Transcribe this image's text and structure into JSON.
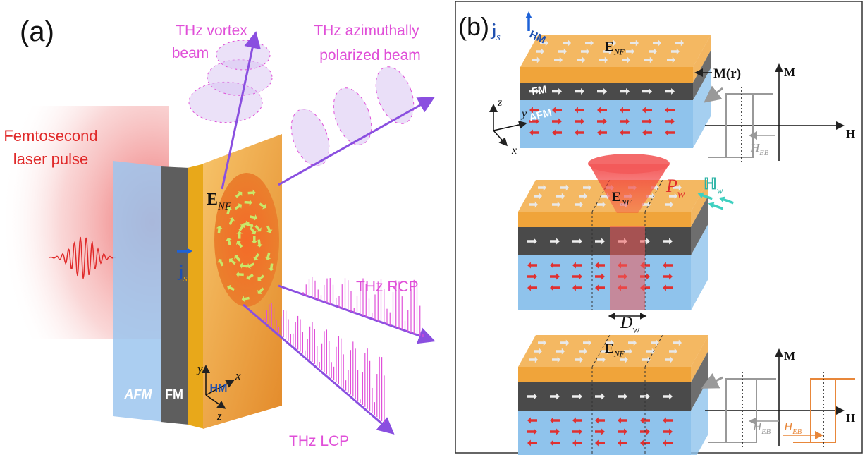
{
  "panel_a": {
    "label": "(a)",
    "vortex_beam": [
      "THz vortex",
      "beam"
    ],
    "azimuthal_beam": [
      "THz azimuthally",
      "polarized beam"
    ],
    "laser": [
      "Femtosecond",
      "laser pulse"
    ],
    "field": {
      "base": "E",
      "sub": "NF"
    },
    "current": {
      "base": "j",
      "sub": "s"
    },
    "layers": [
      "AFM",
      "FM",
      "HM"
    ],
    "axes": [
      "y",
      "x",
      "z"
    ],
    "rcp": "THz RCP",
    "lcp": "THz LCP"
  },
  "panel_b": {
    "label": "(b)",
    "top": {
      "current": {
        "base": "j",
        "sub": "s"
      },
      "layers": [
        "HM",
        "FM",
        "AFM"
      ],
      "field": {
        "base": "E",
        "sub": "NF"
      },
      "magnetization": "M(r)",
      "axes": [
        "z",
        "y",
        "x"
      ],
      "loop": {
        "y_axis": "M",
        "x_axis": "H",
        "bias": {
          "base": "H",
          "sub": "EB"
        }
      }
    },
    "middle": {
      "pump": {
        "base": "P",
        "sub": "w"
      },
      "wave": {
        "base": "ℍ",
        "sub": "w"
      },
      "field": {
        "base": "E",
        "sub": "NF"
      },
      "width": {
        "base": "D",
        "sub": "w"
      }
    },
    "bottom": {
      "field": {
        "base": "E",
        "sub": "NF"
      },
      "loop": {
        "y_axis": "M",
        "x_axis": "H",
        "bias": [
          {
            "base": "H",
            "sub": "EB"
          },
          {
            "base": "H",
            "sub": "EB"
          }
        ]
      }
    }
  }
}
